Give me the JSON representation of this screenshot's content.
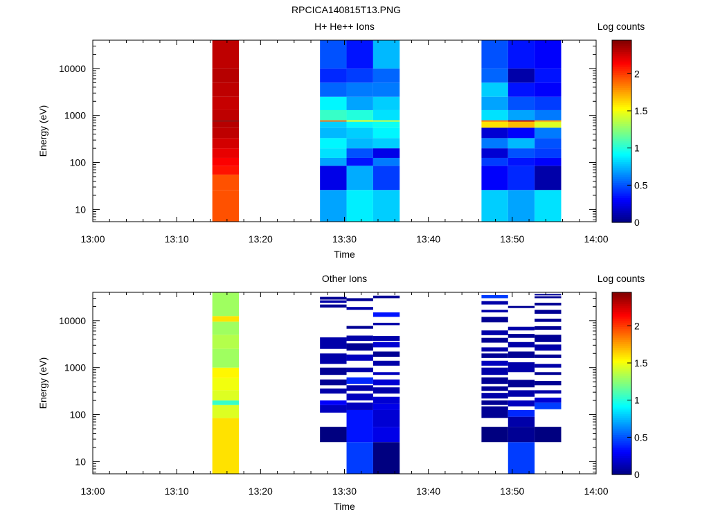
{
  "figure": {
    "title": "RPCICA140815T13.PNG"
  },
  "colorbar": {
    "label": "Log counts",
    "ticks": [
      "0",
      "0.5",
      "1",
      "1.5",
      "2"
    ],
    "tick_values": [
      0,
      0.5,
      1,
      1.5,
      2
    ],
    "range": [
      0,
      2.45
    ],
    "colormap": "jet"
  },
  "chart_data": [
    {
      "type": "heatmap",
      "title": "H+ He++ Ions",
      "xlabel": "Time",
      "ylabel": "Energy (eV)",
      "x_ticks": [
        "13:00",
        "13:10",
        "13:20",
        "13:30",
        "13:40",
        "13:50",
        "14:00"
      ],
      "x_range": [
        "13:00",
        "14:00"
      ],
      "y_ticks": [
        "10",
        "100",
        "1000",
        "10000"
      ],
      "y_range": [
        5.5,
        40000
      ],
      "y_scale": "log",
      "colorbar_label": "Log counts",
      "columns": [
        {
          "start": "13:14:15",
          "end": "13:17:25",
          "bands": [
            [
              5.5,
              26,
              1.95
            ],
            [
              26,
              55,
              1.95
            ],
            [
              55,
              85,
              2.1
            ],
            [
              85,
              125,
              2.15
            ],
            [
              125,
              200,
              2.2
            ],
            [
              200,
              330,
              2.25
            ],
            [
              330,
              550,
              2.3
            ],
            [
              550,
              740,
              2.32
            ],
            [
              740,
              790,
              2.45
            ],
            [
              790,
              1300,
              2.3
            ],
            [
              1300,
              2500,
              2.28
            ],
            [
              2500,
              5000,
              2.3
            ],
            [
              5000,
              10000,
              2.32
            ],
            [
              10000,
              40000,
              2.3
            ]
          ]
        },
        {
          "start": "13:27:05",
          "end": "13:30:15",
          "bands": [
            [
              5.5,
              26,
              0.7
            ],
            [
              26,
              85,
              0.25
            ],
            [
              85,
              125,
              0.7
            ],
            [
              125,
              200,
              0.85
            ],
            [
              200,
              330,
              0.9
            ],
            [
              330,
              550,
              0.75
            ],
            [
              550,
              740,
              0.8
            ],
            [
              740,
              790,
              1.9
            ],
            [
              790,
              1300,
              1.05
            ],
            [
              1300,
              2500,
              0.9
            ],
            [
              2500,
              5000,
              0.55
            ],
            [
              5000,
              10000,
              0.4
            ],
            [
              10000,
              40000,
              0.5
            ]
          ]
        },
        {
          "start": "13:30:15",
          "end": "13:33:25",
          "bands": [
            [
              5.5,
              26,
              0.88
            ],
            [
              26,
              85,
              0.72
            ],
            [
              85,
              125,
              0.35
            ],
            [
              125,
              200,
              0.5
            ],
            [
              200,
              330,
              0.75
            ],
            [
              330,
              550,
              0.8
            ],
            [
              550,
              740,
              0.9
            ],
            [
              740,
              790,
              1.5
            ],
            [
              790,
              1300,
              1.0
            ],
            [
              1300,
              2500,
              0.7
            ],
            [
              2500,
              5000,
              0.6
            ],
            [
              5000,
              10000,
              0.45
            ],
            [
              10000,
              40000,
              0.35
            ]
          ]
        },
        {
          "start": "13:33:25",
          "end": "13:36:35",
          "bands": [
            [
              5.5,
              26,
              0.8
            ],
            [
              26,
              85,
              0.45
            ],
            [
              85,
              125,
              0.6
            ],
            [
              125,
              200,
              0.25
            ],
            [
              200,
              330,
              0.8
            ],
            [
              330,
              550,
              0.9
            ],
            [
              550,
              740,
              0.95
            ],
            [
              740,
              790,
              1.4
            ],
            [
              790,
              1300,
              0.85
            ],
            [
              1300,
              2500,
              0.8
            ],
            [
              2500,
              5000,
              0.6
            ],
            [
              5000,
              10000,
              0.55
            ],
            [
              10000,
              40000,
              0.75
            ]
          ]
        },
        {
          "start": "13:46:20",
          "end": "13:49:30",
          "bands": [
            [
              5.5,
              26,
              0.8
            ],
            [
              26,
              85,
              0.3
            ],
            [
              85,
              125,
              0.45
            ],
            [
              125,
              200,
              0.2
            ],
            [
              200,
              330,
              0.6
            ],
            [
              330,
              550,
              0.2
            ],
            [
              550,
              740,
              1.6
            ],
            [
              740,
              790,
              1.9
            ],
            [
              790,
              1300,
              0.85
            ],
            [
              1300,
              2500,
              0.7
            ],
            [
              2500,
              5000,
              0.8
            ],
            [
              5000,
              10000,
              0.55
            ],
            [
              10000,
              40000,
              0.5
            ]
          ]
        },
        {
          "start": "13:49:30",
          "end": "13:52:40",
          "bands": [
            [
              5.5,
              26,
              0.7
            ],
            [
              26,
              85,
              0.4
            ],
            [
              85,
              125,
              0.35
            ],
            [
              125,
              200,
              0.5
            ],
            [
              200,
              330,
              0.75
            ],
            [
              330,
              550,
              0.3
            ],
            [
              550,
              740,
              1.7
            ],
            [
              740,
              790,
              2.3
            ],
            [
              790,
              1300,
              0.7
            ],
            [
              1300,
              2500,
              0.5
            ],
            [
              2500,
              5000,
              0.35
            ],
            [
              5000,
              10000,
              0.1
            ],
            [
              10000,
              40000,
              0.35
            ]
          ]
        },
        {
          "start": "13:52:40",
          "end": "13:55:50",
          "bands": [
            [
              5.5,
              26,
              0.85
            ],
            [
              26,
              85,
              0.1
            ],
            [
              85,
              125,
              0.3
            ],
            [
              125,
              200,
              0.45
            ],
            [
              200,
              330,
              0.5
            ],
            [
              330,
              550,
              0.6
            ],
            [
              550,
              740,
              1.45
            ],
            [
              740,
              790,
              1.8
            ],
            [
              790,
              1300,
              0.6
            ],
            [
              1300,
              2500,
              0.45
            ],
            [
              2500,
              5000,
              0.3
            ],
            [
              5000,
              10000,
              0.35
            ],
            [
              10000,
              40000,
              0.3
            ]
          ]
        }
      ]
    },
    {
      "type": "heatmap",
      "title": "Other Ions",
      "xlabel": "Time",
      "ylabel": "Energy (eV)",
      "x_ticks": [
        "13:00",
        "13:10",
        "13:20",
        "13:30",
        "13:40",
        "13:50",
        "14:00"
      ],
      "x_range": [
        "13:00",
        "14:00"
      ],
      "y_ticks": [
        "10",
        "100",
        "1000",
        "10000"
      ],
      "y_range": [
        5.5,
        40000
      ],
      "y_scale": "log",
      "colorbar_label": "Log counts",
      "columns": [
        {
          "start": "13:14:15",
          "end": "13:17:25",
          "bands": [
            [
              5.5,
              85,
              1.6
            ],
            [
              85,
              160,
              1.45
            ],
            [
              160,
              200,
              1.05
            ],
            [
              200,
              330,
              1.45
            ],
            [
              330,
              600,
              1.5
            ],
            [
              600,
              1000,
              1.55
            ],
            [
              1000,
              2500,
              1.3
            ],
            [
              2500,
              5000,
              1.35
            ],
            [
              5000,
              9500,
              1.3
            ],
            [
              9500,
              12500,
              1.6
            ],
            [
              12500,
              40000,
              1.3
            ]
          ]
        },
        {
          "start": "13:27:05",
          "end": "13:30:15",
          "bands": [
            [
              26,
              55,
              0.0
            ],
            [
              110,
              160,
              0.15
            ],
            [
              160,
              200,
              0.3
            ],
            [
              280,
              360,
              0.1
            ],
            [
              420,
              560,
              0.05
            ],
            [
              700,
              1000,
              0.05
            ],
            [
              1200,
              2000,
              0.1
            ],
            [
              2500,
              4400,
              0.1
            ],
            [
              19000,
              22000,
              0.05
            ],
            [
              24000,
              27000,
              0.1
            ],
            [
              28000,
              32000,
              0.05
            ]
          ]
        },
        {
          "start": "13:30:15",
          "end": "13:33:25",
          "bands": [
            [
              5.5,
              26,
              0.45
            ],
            [
              26,
              125,
              0.35
            ],
            [
              125,
              180,
              0.15
            ],
            [
              200,
              280,
              0.15
            ],
            [
              320,
              420,
              0.1
            ],
            [
              450,
              620,
              0.4
            ],
            [
              800,
              1000,
              0.1
            ],
            [
              1400,
              1900,
              0.15
            ],
            [
              2300,
              3300,
              0.05
            ],
            [
              3700,
              4800,
              0.1
            ],
            [
              6700,
              7700,
              0.05
            ],
            [
              17000,
              19500,
              0.1
            ],
            [
              26000,
              30000,
              0.05
            ]
          ]
        },
        {
          "start": "13:33:25",
          "end": "13:36:35",
          "bands": [
            [
              5.5,
              26,
              0.0
            ],
            [
              26,
              55,
              0.25
            ],
            [
              55,
              125,
              0.2
            ],
            [
              125,
              170,
              0.25
            ],
            [
              170,
              240,
              0.2
            ],
            [
              280,
              380,
              0.1
            ],
            [
              420,
              560,
              0.2
            ],
            [
              700,
              800,
              0.15
            ],
            [
              1100,
              1400,
              0.1
            ],
            [
              1700,
              2200,
              0.05
            ],
            [
              2700,
              3500,
              0.2
            ],
            [
              3700,
              4700,
              0.1
            ],
            [
              8000,
              9000,
              0.1
            ],
            [
              12000,
              15000,
              0.35
            ],
            [
              30000,
              34000,
              0.05
            ]
          ]
        },
        {
          "start": "13:46:20",
          "end": "13:49:30",
          "bands": [
            [
              26,
              55,
              0.0
            ],
            [
              85,
              150,
              0.05
            ],
            [
              160,
              200,
              0.05
            ],
            [
              220,
              290,
              0.1
            ],
            [
              320,
              400,
              0.05
            ],
            [
              450,
              620,
              0.05
            ],
            [
              700,
              1000,
              0.1
            ],
            [
              1100,
              1400,
              0.15
            ],
            [
              1600,
              2000,
              0.05
            ],
            [
              2200,
              2700,
              0.1
            ],
            [
              3400,
              4300,
              0.05
            ],
            [
              4900,
              6200,
              0.1
            ],
            [
              9200,
              12000,
              0.05
            ],
            [
              15000,
              17000,
              0.1
            ],
            [
              22000,
              26000,
              0.1
            ],
            [
              30000,
              35000,
              0.45
            ]
          ]
        },
        {
          "start": "13:49:30",
          "end": "13:52:40",
          "bands": [
            [
              5.5,
              26,
              0.45
            ],
            [
              26,
              55,
              0.05
            ],
            [
              55,
              90,
              0.1
            ],
            [
              90,
              125,
              0.4
            ],
            [
              150,
              200,
              0.15
            ],
            [
              240,
              330,
              0.1
            ],
            [
              380,
              550,
              0.05
            ],
            [
              800,
              1300,
              0.1
            ],
            [
              1600,
              2200,
              0.05
            ],
            [
              2700,
              3500,
              0.1
            ],
            [
              4300,
              5200,
              0.05
            ],
            [
              6200,
              7400,
              0.1
            ],
            [
              18500,
              20500,
              0.05
            ]
          ]
        },
        {
          "start": "13:52:40",
          "end": "13:55:50",
          "bands": [
            [
              26,
              55,
              0.0
            ],
            [
              130,
              180,
              0.45
            ],
            [
              180,
              230,
              0.2
            ],
            [
              280,
              330,
              0.1
            ],
            [
              420,
              520,
              0.05
            ],
            [
              700,
              800,
              0.05
            ],
            [
              1000,
              1200,
              0.1
            ],
            [
              1600,
              1900,
              0.05
            ],
            [
              2300,
              3100,
              0.1
            ],
            [
              3500,
              5000,
              0.05
            ],
            [
              6400,
              7600,
              0.05
            ],
            [
              9400,
              11000,
              0.05
            ],
            [
              14000,
              17000,
              0.05
            ],
            [
              21000,
              24000,
              0.05
            ],
            [
              30000,
              33000,
              0.05
            ],
            [
              34500,
              37000,
              0.05
            ]
          ]
        }
      ]
    }
  ]
}
